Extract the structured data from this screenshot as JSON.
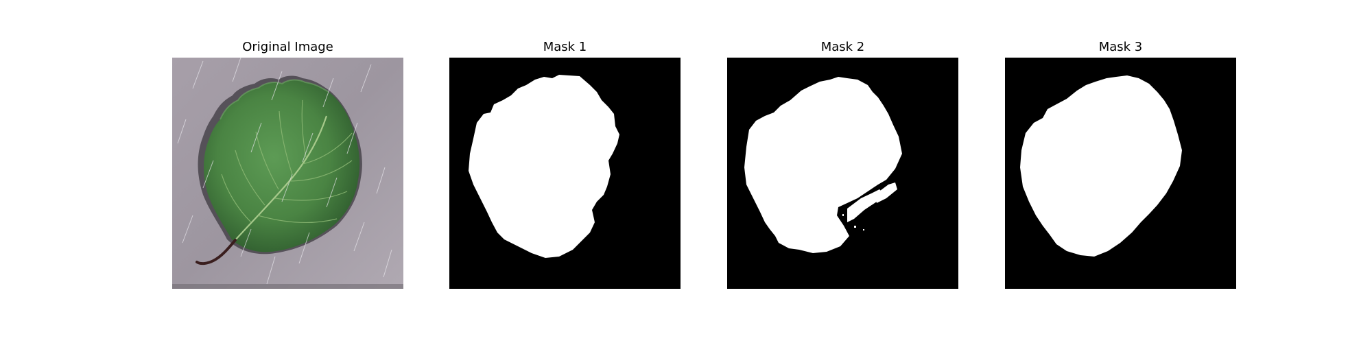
{
  "figure": {
    "panels": [
      {
        "title": "Original Image",
        "kind": "photo"
      },
      {
        "title": "Mask 1",
        "kind": "mask"
      },
      {
        "title": "Mask 2",
        "kind": "mask"
      },
      {
        "title": "Mask 3",
        "kind": "mask"
      }
    ]
  },
  "colors": {
    "mask_background": "#000000",
    "mask_foreground": "#ffffff",
    "photo_background": "#a59ea6",
    "leaf_green": "#4c8a45",
    "leaf_dark": "#2f5f2f",
    "stem": "#3a1e1e"
  }
}
